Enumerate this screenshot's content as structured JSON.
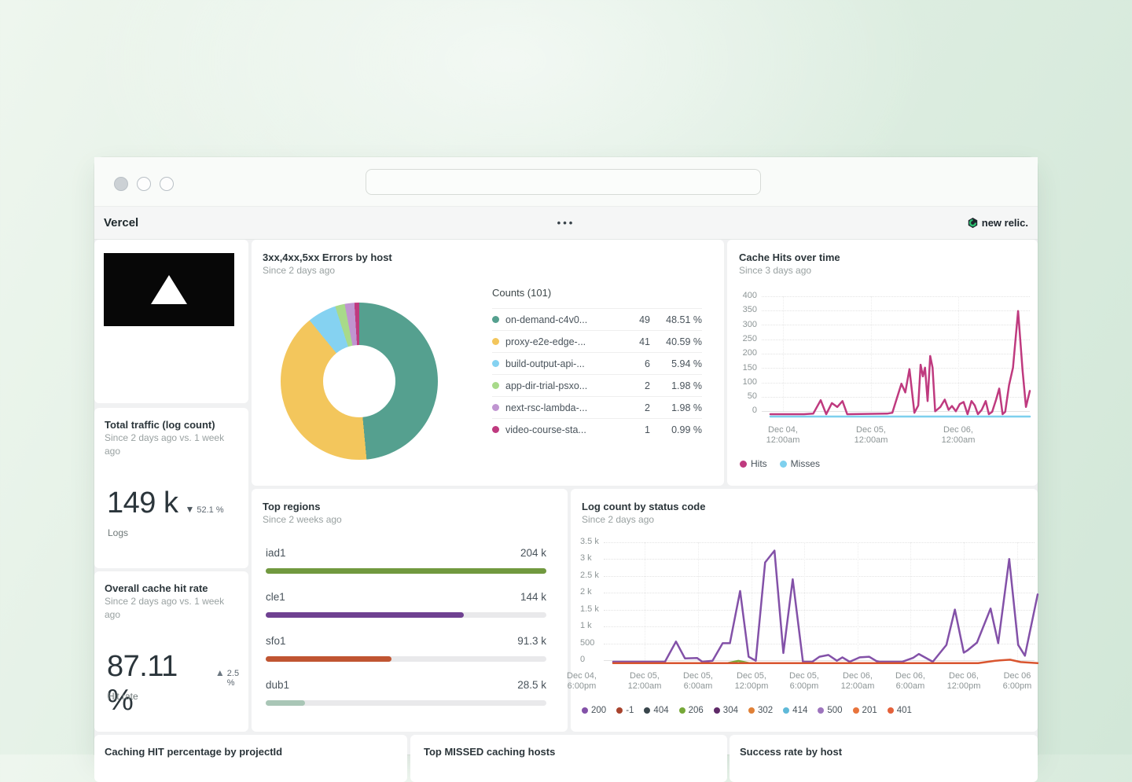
{
  "window": {
    "page_title": "Vercel",
    "menu_dots": "•••",
    "brand": "new relic."
  },
  "cards": {
    "errors": {
      "title": "3xx,4xx,5xx Errors by host",
      "subtitle": "Since 2 days ago",
      "legend_title": "Counts (101)",
      "rows": [
        {
          "name": "on-demand-c4v0...",
          "count": "49",
          "pct": "48.51 %",
          "color": "#55a08f"
        },
        {
          "name": "proxy-e2e-edge-...",
          "count": "41",
          "pct": "40.59 %",
          "color": "#f3c65c"
        },
        {
          "name": "build-output-api-...",
          "count": "6",
          "pct": "5.94 %",
          "color": "#85d2f1"
        },
        {
          "name": "app-dir-trial-psxo...",
          "count": "2",
          "pct": "1.98 %",
          "color": "#a8da8a"
        },
        {
          "name": "next-rsc-lambda-...",
          "count": "2",
          "pct": "1.98 %",
          "color": "#c095d1"
        },
        {
          "name": "video-course-sta...",
          "count": "1",
          "pct": "0.99 %",
          "color": "#bf3a7f"
        }
      ]
    },
    "cache_hits": {
      "title": "Cache Hits over time",
      "subtitle": "Since 3 days ago",
      "ylabels": [
        "400",
        "350",
        "300",
        "250",
        "200",
        "150",
        "100",
        "50",
        "0"
      ],
      "xticks": [
        {
          "l1": "Dec 04,",
          "l2": "12:00am"
        },
        {
          "l1": "Dec 05,",
          "l2": "12:00am"
        },
        {
          "l1": "Dec 06,",
          "l2": "12:00am"
        }
      ],
      "legend": [
        {
          "label": "Hits",
          "color": "#bf3a7f"
        },
        {
          "label": "Misses",
          "color": "#7ed0ee"
        }
      ]
    },
    "total_traffic": {
      "title": "Total traffic (log count)",
      "subtitle": "Since 2 days ago vs. 1 week ago",
      "value": "149 k",
      "delta_glyph": "▼",
      "delta": "52.1 %",
      "unit": "Logs"
    },
    "hit_rate": {
      "title": "Overall cache hit rate",
      "subtitle": "Since 2 days ago vs. 1 week ago",
      "value": "87.11 %",
      "delta_glyph": "▲",
      "delta": "2.5 %",
      "unit": "Hit rate"
    },
    "top_regions": {
      "title": "Top regions",
      "subtitle": "Since 2 weeks ago",
      "rows": [
        {
          "label": "iad1",
          "value": "204 k"
        },
        {
          "label": "cle1",
          "value": "144 k"
        },
        {
          "label": "sfo1",
          "value": "91.3 k"
        },
        {
          "label": "dub1",
          "value": "28.5 k"
        }
      ]
    },
    "log_count": {
      "title": "Log count by status code",
      "subtitle": "Since 2 days ago",
      "ylabels": [
        "3.5 k",
        "3 k",
        "2.5 k",
        "2 k",
        "1.5 k",
        "1 k",
        "500",
        "0"
      ],
      "xticks": [
        {
          "l1": "Dec 04,",
          "l2": "6:00pm"
        },
        {
          "l1": "Dec 05,",
          "l2": "12:00am"
        },
        {
          "l1": "Dec 05,",
          "l2": "6:00am"
        },
        {
          "l1": "Dec 05,",
          "l2": "12:00pm"
        },
        {
          "l1": "Dec 05,",
          "l2": "6:00pm"
        },
        {
          "l1": "Dec 06,",
          "l2": "12:00am"
        },
        {
          "l1": "Dec 06,",
          "l2": "6:00am"
        },
        {
          "l1": "Dec 06,",
          "l2": "12:00pm"
        },
        {
          "l1": "Dec 06",
          "l2": "6:00pm"
        }
      ],
      "legend": [
        {
          "label": "200",
          "color": "#8351a8"
        },
        {
          "label": "-1",
          "color": "#a8432d"
        },
        {
          "label": "404",
          "color": "#39464c"
        },
        {
          "label": "206",
          "color": "#76a838"
        },
        {
          "label": "304",
          "color": "#5f2a68"
        },
        {
          "label": "302",
          "color": "#e08036"
        },
        {
          "label": "414",
          "color": "#5fb9d8"
        },
        {
          "label": "500",
          "color": "#9d74bd"
        },
        {
          "label": "201",
          "color": "#e8743c"
        },
        {
          "label": "401",
          "color": "#e4613a"
        }
      ]
    },
    "bottom": {
      "caching_hit_title": "Caching HIT percentage by projectId",
      "top_missed_title": "Top MISSED caching hosts",
      "success_rate_title": "Success rate by host"
    }
  },
  "chart_data": [
    {
      "id": "donut-errors",
      "type": "pie",
      "title": "3xx,4xx,5xx Errors by host",
      "total": 101,
      "slices": [
        {
          "label": "on-demand-c4v0",
          "value": 49,
          "pct": 48.51,
          "color": "#55a08f"
        },
        {
          "label": "proxy-e2e-edge",
          "value": 41,
          "pct": 40.59,
          "color": "#f3c65c"
        },
        {
          "label": "build-output-api",
          "value": 6,
          "pct": 5.94,
          "color": "#85d2f1"
        },
        {
          "label": "app-dir-trial-psxo",
          "value": 2,
          "pct": 1.98,
          "color": "#a8da8a"
        },
        {
          "label": "next-rsc-lambda",
          "value": 2,
          "pct": 1.98,
          "color": "#c095d1"
        },
        {
          "label": "video-course-sta",
          "value": 1,
          "pct": 0.99,
          "color": "#bf3a7f"
        }
      ]
    },
    {
      "id": "cache-hits",
      "type": "line",
      "title": "Cache Hits over time",
      "ymax": 400,
      "ylim": [
        0,
        400
      ],
      "xrange": [
        "Dec 04 12:00am",
        "Dec 07"
      ],
      "series": [
        {
          "name": "Misses",
          "color": "#7ed0ee",
          "width": 2.5,
          "points": [
            [
              0,
              -8
            ],
            [
              1,
              -8
            ]
          ]
        },
        {
          "name": "Hits",
          "color": "#bf3a7f",
          "width": 2.5,
          "points": [
            [
              0,
              0
            ],
            [
              0.13,
              0
            ],
            [
              0.165,
              2
            ],
            [
              0.194,
              48
            ],
            [
              0.215,
              0
            ],
            [
              0.237,
              38
            ],
            [
              0.258,
              25
            ],
            [
              0.278,
              45
            ],
            [
              0.296,
              0
            ],
            [
              0.45,
              2
            ],
            [
              0.47,
              5
            ],
            [
              0.505,
              105
            ],
            [
              0.52,
              75
            ],
            [
              0.536,
              155
            ],
            [
              0.555,
              5
            ],
            [
              0.57,
              30
            ],
            [
              0.579,
              170
            ],
            [
              0.588,
              130
            ],
            [
              0.596,
              160
            ],
            [
              0.606,
              45
            ],
            [
              0.616,
              200
            ],
            [
              0.625,
              160
            ],
            [
              0.635,
              10
            ],
            [
              0.655,
              25
            ],
            [
              0.672,
              50
            ],
            [
              0.687,
              15
            ],
            [
              0.7,
              28
            ],
            [
              0.715,
              10
            ],
            [
              0.73,
              35
            ],
            [
              0.745,
              42
            ],
            [
              0.76,
              0
            ],
            [
              0.775,
              45
            ],
            [
              0.788,
              30
            ],
            [
              0.8,
              0
            ],
            [
              0.815,
              15
            ],
            [
              0.83,
              45
            ],
            [
              0.842,
              0
            ],
            [
              0.855,
              8
            ],
            [
              0.87,
              50
            ],
            [
              0.882,
              88
            ],
            [
              0.895,
              0
            ],
            [
              0.905,
              8
            ],
            [
              0.92,
              100
            ],
            [
              0.935,
              160
            ],
            [
              0.955,
              355
            ],
            [
              0.972,
              150
            ],
            [
              0.985,
              25
            ],
            [
              1,
              80
            ]
          ]
        }
      ]
    },
    {
      "id": "top-regions",
      "type": "bar",
      "title": "Top regions",
      "categories": [
        "iad1",
        "cle1",
        "sfo1",
        "dub1"
      ],
      "values": [
        204000,
        144000,
        91300,
        28500
      ],
      "bars": [
        {
          "frac": 1.0,
          "color": "#71993f"
        },
        {
          "frac": 0.706,
          "color": "#6f4191"
        },
        {
          "frac": 0.448,
          "color": "#c05532"
        },
        {
          "frac": 0.14,
          "color": "#a9c6b6"
        }
      ]
    },
    {
      "id": "log-status",
      "type": "line",
      "title": "Log count by status code",
      "ymax": 3500,
      "ylim": [
        0,
        3500
      ],
      "xrange": [
        "Dec 04 6:00pm",
        "Dec 06 6:00pm"
      ],
      "series": [
        {
          "name": "206",
          "color": "#76a838",
          "width": 2.5,
          "points": [
            [
              0.27,
              -40
            ],
            [
              0.295,
              25
            ],
            [
              0.32,
              -40
            ]
          ]
        },
        {
          "name": "200",
          "color": "#8351a8",
          "width": 2.5,
          "points": [
            [
              0,
              0
            ],
            [
              0.122,
              0
            ],
            [
              0.148,
              600
            ],
            [
              0.169,
              100
            ],
            [
              0.198,
              110
            ],
            [
              0.21,
              0
            ],
            [
              0.234,
              30
            ],
            [
              0.258,
              550
            ],
            [
              0.275,
              550
            ],
            [
              0.299,
              2100
            ],
            [
              0.319,
              150
            ],
            [
              0.336,
              30
            ],
            [
              0.358,
              2950
            ],
            [
              0.38,
              3300
            ],
            [
              0.401,
              260
            ],
            [
              0.423,
              2450
            ],
            [
              0.447,
              0
            ],
            [
              0.469,
              0
            ],
            [
              0.486,
              150
            ],
            [
              0.507,
              200
            ],
            [
              0.527,
              30
            ],
            [
              0.54,
              130
            ],
            [
              0.557,
              0
            ],
            [
              0.581,
              130
            ],
            [
              0.603,
              150
            ],
            [
              0.62,
              20
            ],
            [
              0.627,
              0
            ],
            [
              0.681,
              0
            ],
            [
              0.707,
              120
            ],
            [
              0.72,
              230
            ],
            [
              0.753,
              0
            ],
            [
              0.785,
              500
            ],
            [
              0.805,
              1550
            ],
            [
              0.826,
              270
            ],
            [
              0.835,
              340
            ],
            [
              0.857,
              570
            ],
            [
              0.889,
              1580
            ],
            [
              0.907,
              550
            ],
            [
              0.933,
              3050
            ],
            [
              0.954,
              500
            ],
            [
              0.97,
              180
            ],
            [
              1,
              2000
            ]
          ]
        },
        {
          "name": "401",
          "color": "#d9552f",
          "width": 2.5,
          "points": [
            [
              0,
              -40
            ],
            [
              0.86,
              -40
            ],
            [
              0.9,
              30
            ],
            [
              0.935,
              60
            ],
            [
              0.96,
              -10
            ],
            [
              1,
              -40
            ]
          ]
        }
      ]
    }
  ]
}
